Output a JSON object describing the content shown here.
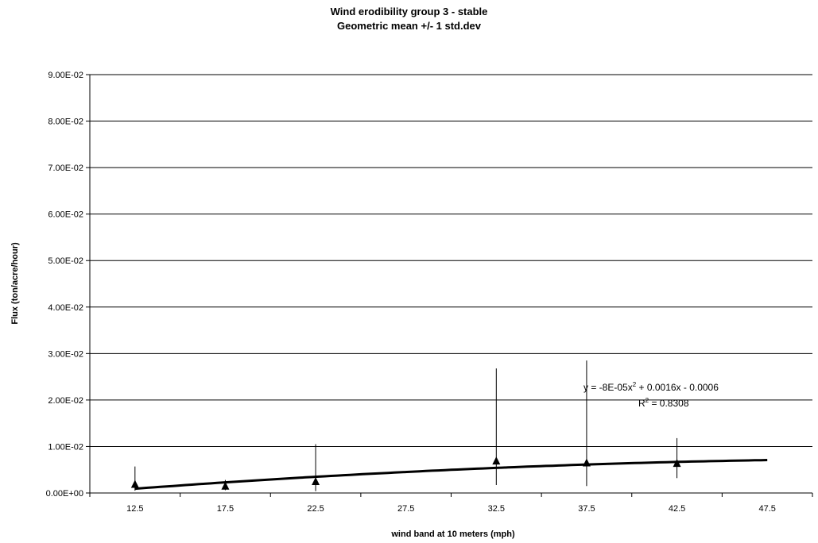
{
  "chart_data": {
    "type": "scatter",
    "title": "Wind erodibility group 3 - stable",
    "subtitle": "Geometric mean +/- 1 std.dev",
    "xlabel": "wind band at 10 meters (mph)",
    "ylabel": "Flux (ton/acre/hour)",
    "categories": [
      "12.5",
      "17.5",
      "22.5",
      "27.5",
      "32.5",
      "37.5",
      "42.5",
      "47.5"
    ],
    "ylim": [
      0,
      0.09
    ],
    "y_ticks": [
      {
        "value": 0.0,
        "label": "0.00E+00"
      },
      {
        "value": 0.01,
        "label": "1.00E-02"
      },
      {
        "value": 0.02,
        "label": "2.00E-02"
      },
      {
        "value": 0.03,
        "label": "3.00E-02"
      },
      {
        "value": 0.04,
        "label": "4.00E-02"
      },
      {
        "value": 0.05,
        "label": "5.00E-02"
      },
      {
        "value": 0.06,
        "label": "6.00E-02"
      },
      {
        "value": 0.07,
        "label": "7.00E-02"
      },
      {
        "value": 0.08,
        "label": "8.00E-02"
      },
      {
        "value": 0.09,
        "label": "9.00E-02"
      }
    ],
    "grid": "horizontal",
    "legend": "none",
    "series": [
      {
        "marker": "triangle",
        "color": "#000000",
        "points": [
          {
            "x": 12.5,
            "y": 0.0018,
            "low": 0.0005,
            "high": 0.0057
          },
          {
            "x": 17.5,
            "y": 0.0014,
            "low": 0.0006,
            "high": 0.0028
          },
          {
            "x": 22.5,
            "y": 0.0024,
            "low": 0.0004,
            "high": 0.0105
          },
          {
            "x": 32.5,
            "y": 0.0068,
            "low": 0.0017,
            "high": 0.0268
          },
          {
            "x": 37.5,
            "y": 0.0064,
            "low": 0.0015,
            "high": 0.0285
          },
          {
            "x": 42.5,
            "y": 0.0063,
            "low": 0.0032,
            "high": 0.0118
          }
        ]
      }
    ],
    "trendline": {
      "type": "polynomial",
      "order": 2,
      "x_from": 12.5,
      "x_to": 47.5,
      "equation_main": "y = -8E-05x",
      "equation_sup": "2",
      "equation_rest": " + 0.0016x - 0.0006",
      "r2_main": "R",
      "r2_sup": "2",
      "r2_rest": " = 0.8308"
    }
  }
}
